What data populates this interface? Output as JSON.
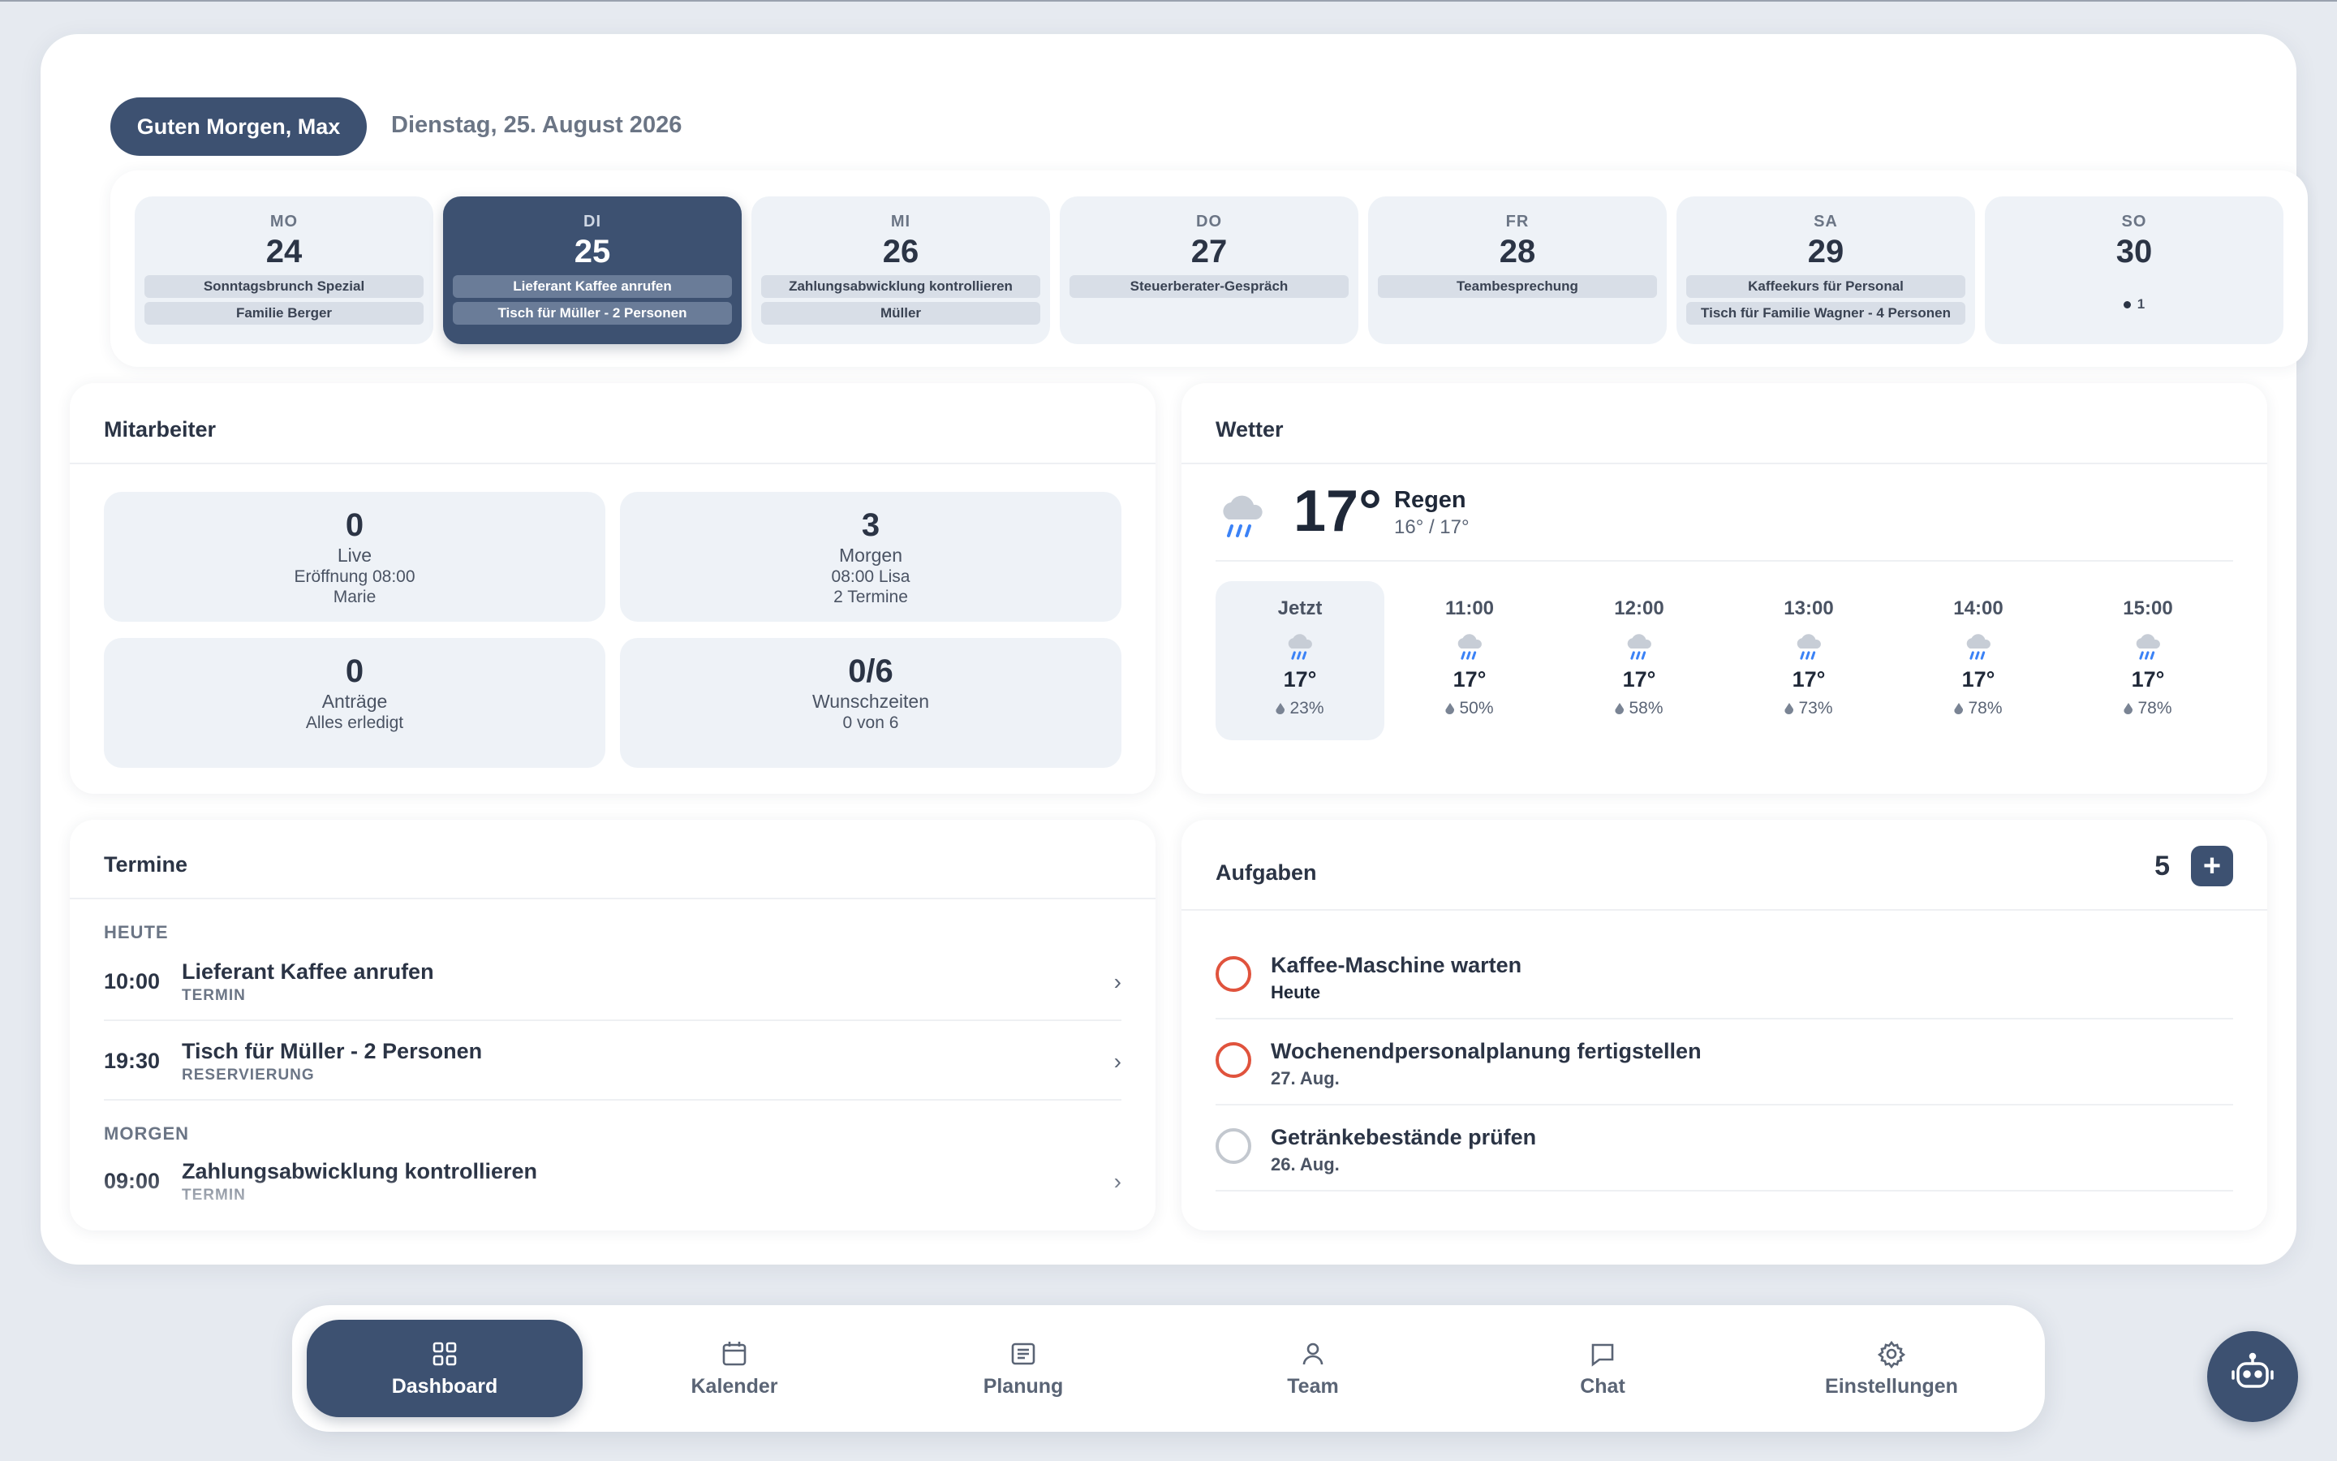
{
  "header": {
    "greeting": "Guten Morgen, Max",
    "date": "Dienstag, 25. August 2026"
  },
  "week": [
    {
      "day": "MO",
      "num": "24",
      "events": [
        "Sonntagsbrunch Spezial",
        "Familie Berger"
      ],
      "more": ""
    },
    {
      "day": "DI",
      "num": "25",
      "events": [
        "Lieferant Kaffee anrufen",
        "Tisch für Müller - 2 Personen"
      ],
      "more": "",
      "active": true
    },
    {
      "day": "MI",
      "num": "26",
      "events": [
        "Zahlungsabwicklung kontrollieren",
        "Müller"
      ],
      "more": ""
    },
    {
      "day": "DO",
      "num": "27",
      "events": [
        "Steuerberater-Gespräch"
      ],
      "more": ""
    },
    {
      "day": "FR",
      "num": "28",
      "events": [
        "Teambesprechung"
      ],
      "more": ""
    },
    {
      "day": "SA",
      "num": "29",
      "events": [
        "Kaffeekurs für Personal",
        "Tisch für Familie Wagner - 4 Personen"
      ],
      "more": ""
    },
    {
      "day": "SO",
      "num": "30",
      "events": [],
      "more": "1"
    }
  ],
  "staff": {
    "title": "Mitarbeiter",
    "tiles": [
      {
        "value": "0",
        "label": "Live",
        "sub1": "Eröffnung 08:00",
        "sub2": "Marie"
      },
      {
        "value": "3",
        "label": "Morgen",
        "sub1": "08:00 Lisa",
        "sub2": "2 Termine"
      },
      {
        "value": "0",
        "label": "Anträge",
        "sub1": "Alles erledigt",
        "sub2": ""
      },
      {
        "value": "0/6",
        "label": "Wunschzeiten",
        "sub1": "0 von 6",
        "sub2": ""
      }
    ]
  },
  "weather": {
    "title": "Wetter",
    "icon": "rain-cloud-icon",
    "temp": "17°",
    "condition": "Regen",
    "range": "16° / 17°",
    "hours": [
      {
        "time": "Jetzt",
        "temp": "17°",
        "precip": "23%"
      },
      {
        "time": "11:00",
        "temp": "17°",
        "precip": "50%"
      },
      {
        "time": "12:00",
        "temp": "17°",
        "precip": "58%"
      },
      {
        "time": "13:00",
        "temp": "17°",
        "precip": "73%"
      },
      {
        "time": "14:00",
        "temp": "17°",
        "precip": "78%"
      },
      {
        "time": "15:00",
        "temp": "17°",
        "precip": "78%"
      }
    ]
  },
  "appointments": {
    "title": "Termine",
    "today_label": "HEUTE",
    "tomorrow_label": "MORGEN",
    "today": [
      {
        "time": "10:00",
        "name": "Lieferant Kaffee anrufen",
        "kind": "TERMIN"
      },
      {
        "time": "19:30",
        "name": "Tisch für Müller - 2 Personen",
        "kind": "RESERVIERUNG"
      }
    ],
    "tomorrow": [
      {
        "time": "09:00",
        "name": "Zahlungsabwicklung kontrollieren",
        "kind": "TERMIN"
      }
    ]
  },
  "tasks": {
    "title": "Aufgaben",
    "count": "5",
    "add_label": "+",
    "items": [
      {
        "name": "Kaffee-Maschine warten",
        "date": "Heute",
        "status": "overdue"
      },
      {
        "name": "Wochenendpersonalplanung fertigstellen",
        "date": "27. Aug.",
        "status": "overdue"
      },
      {
        "name": "Getränkebestände prüfen",
        "date": "26. Aug.",
        "status": "open"
      }
    ]
  },
  "nav": {
    "items": [
      {
        "label": "Dashboard",
        "icon": "grid-icon",
        "active": true
      },
      {
        "label": "Kalender",
        "icon": "calendar-icon"
      },
      {
        "label": "Planung",
        "icon": "list-icon"
      },
      {
        "label": "Team",
        "icon": "person-icon"
      },
      {
        "label": "Chat",
        "icon": "chat-icon"
      },
      {
        "label": "Einstellungen",
        "icon": "gear-icon"
      }
    ]
  },
  "assistant": {
    "icon": "robot-icon"
  },
  "colors": {
    "accent": "#3d5171",
    "overdue": "#e0533d",
    "background": "#e6eaf0"
  }
}
